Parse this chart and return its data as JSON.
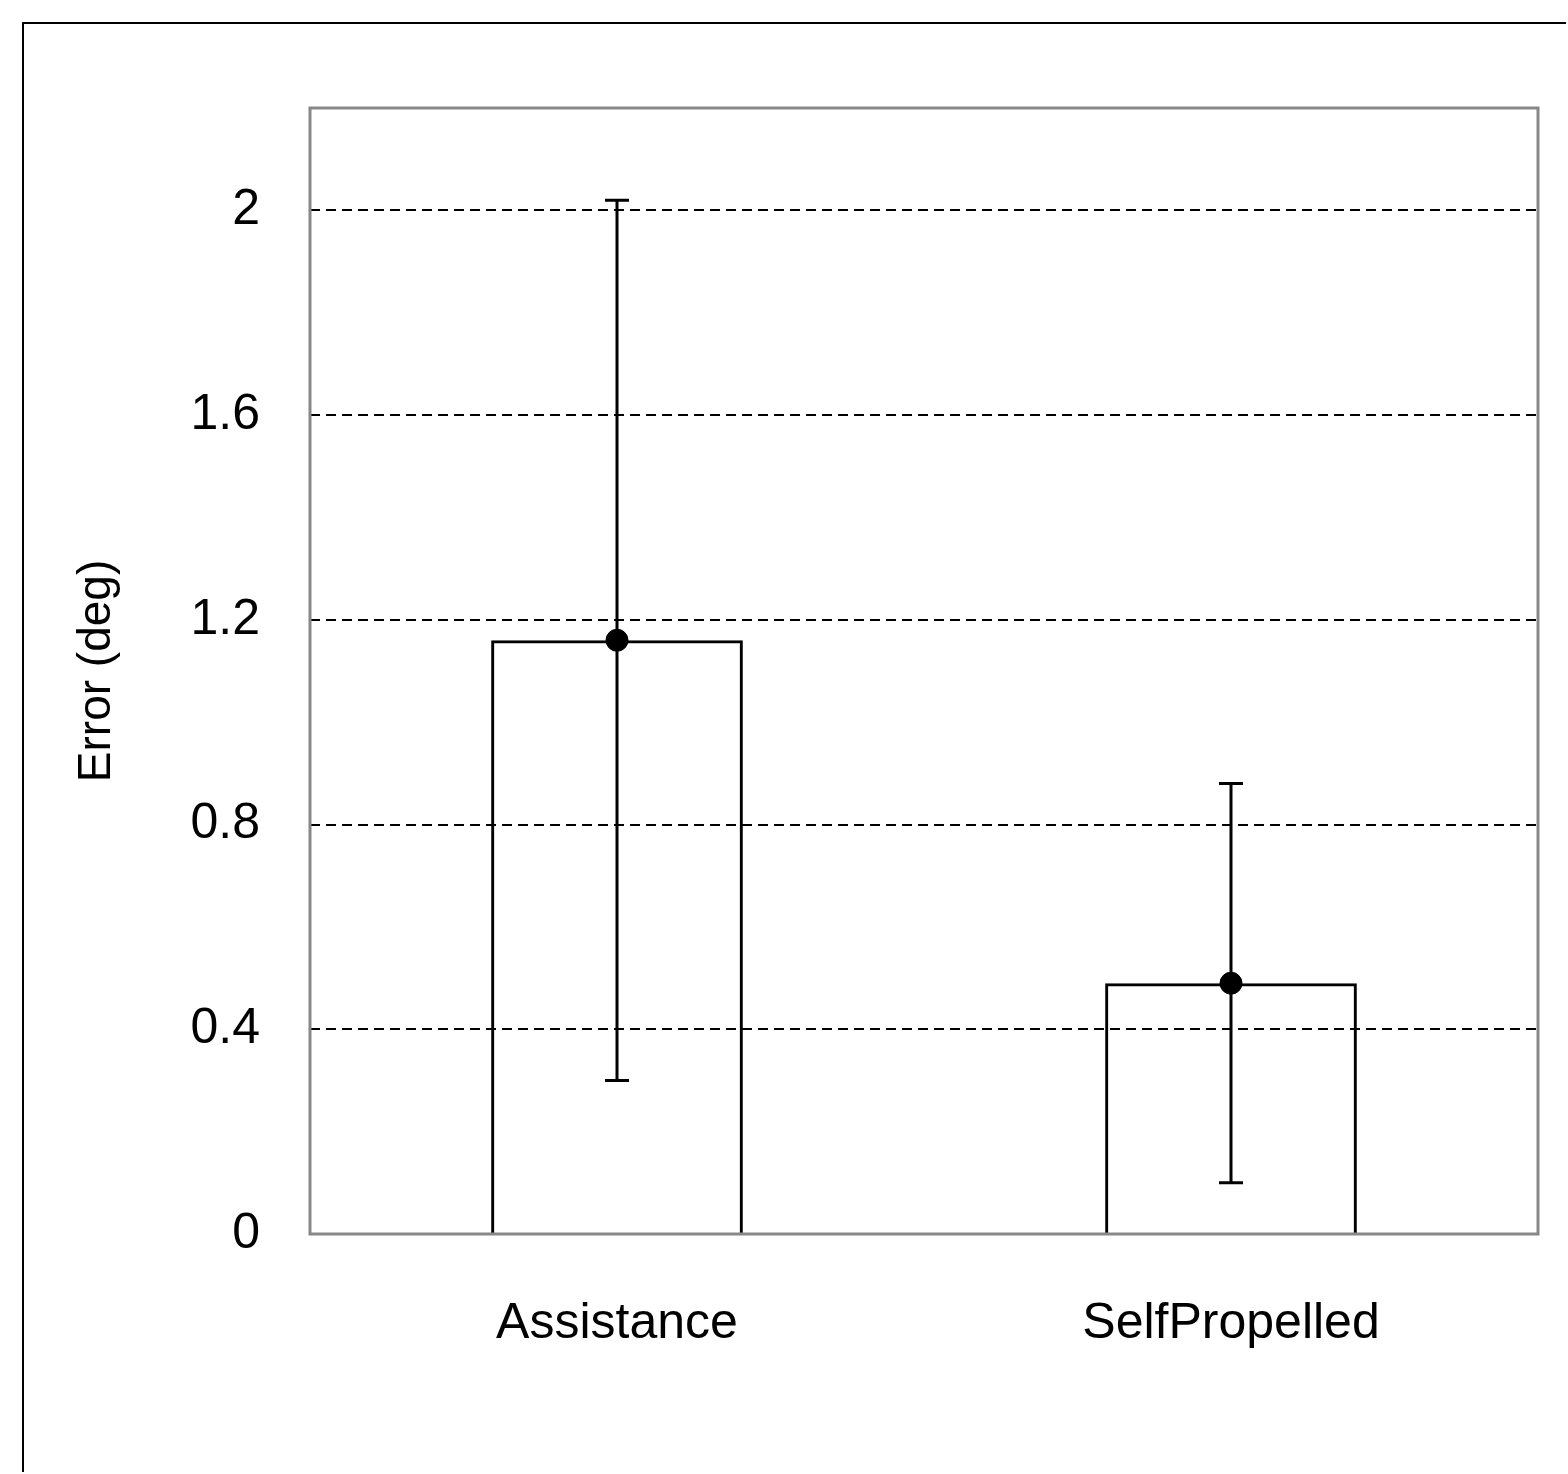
{
  "chart_data": {
    "type": "bar",
    "ylabel": "Error (deg)",
    "categories": [
      "Assistance",
      "SelfPropelled"
    ],
    "series": [
      {
        "color": "#000000",
        "values": [
          1.16,
          0.49
        ]
      },
      {
        "type": "scatter",
        "color": "#000000",
        "values": [
          1.16,
          0.49
        ],
        "errors": [
          0.86,
          0.39
        ]
      }
    ],
    "ylim": [
      0,
      2.2
    ],
    "yticks": [
      0,
      0.4,
      0.8,
      1.2,
      1.6,
      2
    ],
    "grid": "y",
    "legend": false,
    "marker": "circle"
  }
}
